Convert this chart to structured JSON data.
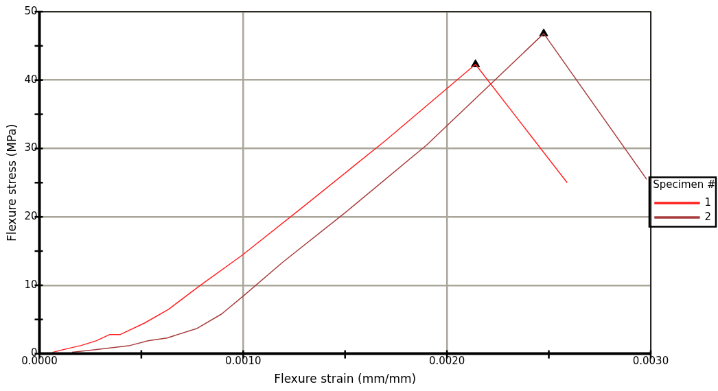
{
  "chart_data": {
    "type": "line",
    "xlabel": "Flexure strain (mm/mm)",
    "ylabel": "Flexure stress (MPa)",
    "legend_title": "Specimen #",
    "legend": "right",
    "grid": true,
    "marker": "none",
    "line_style": "solid",
    "xlim": [
      0,
      0.003
    ],
    "ylim": [
      0,
      50
    ],
    "xticks": [
      {
        "value": 0,
        "label": "0.0000"
      },
      {
        "value": 0.0005,
        "label": null
      },
      {
        "value": 0.001,
        "label": "0.0010"
      },
      {
        "value": 0.0015,
        "label": null
      },
      {
        "value": 0.002,
        "label": "0.0020"
      },
      {
        "value": 0.0025,
        "label": null
      },
      {
        "value": 0.003,
        "label": "0.0030"
      }
    ],
    "yticks": [
      0,
      {
        "value": 5,
        "label": null
      },
      10,
      {
        "value": 15,
        "label": null
      },
      20,
      {
        "value": 25,
        "label": null
      },
      30,
      {
        "value": 35,
        "label": null
      },
      40,
      {
        "value": 45,
        "label": null
      },
      50
    ],
    "series": [
      {
        "name": "1",
        "color": "#ff2020",
        "x": [
          6.4e-05,
          0.000132,
          0.000205,
          0.00028,
          0.000345,
          0.000397,
          0.000517,
          0.000634,
          0.00079,
          0.000995,
          0.0013,
          0.0017,
          0.00214,
          0.00259
        ],
        "values": [
          0.2,
          0.7,
          1.2,
          1.9,
          2.8,
          2.8,
          4.5,
          6.5,
          10.0,
          14.4,
          21.6,
          31.2,
          42.3,
          25.0
        ]
      },
      {
        "name": "2",
        "color": "#a83c3c",
        "x": [
          0.00016,
          0.00031,
          0.000445,
          0.000533,
          0.000626,
          0.000774,
          0.000894,
          0.000999,
          0.001195,
          0.0015,
          0.0019,
          0.002475,
          0.00298
        ],
        "values": [
          0.2,
          0.7,
          1.2,
          1.9,
          2.3,
          3.7,
          5.8,
          8.4,
          13.4,
          20.6,
          30.5,
          46.8,
          25.5
        ]
      },
      {
        "type": "scatter",
        "marker": "triangle",
        "color": "#000000",
        "x": [
          0.00214,
          0.002475
        ],
        "values": [
          42.3,
          46.8
        ]
      }
    ]
  }
}
